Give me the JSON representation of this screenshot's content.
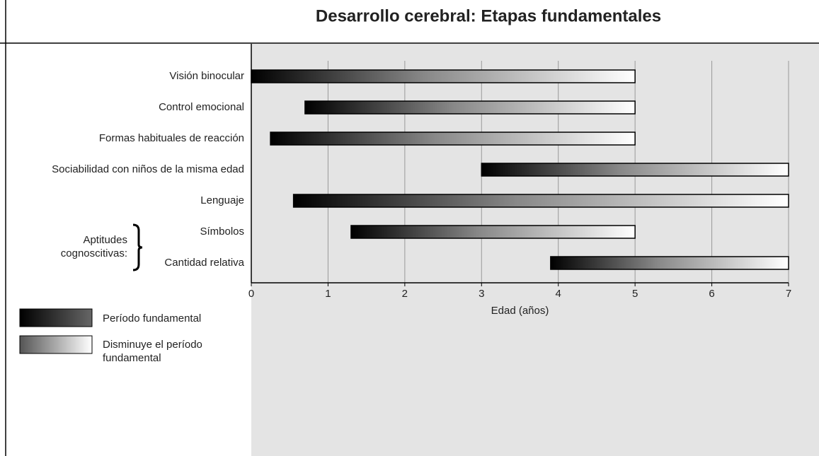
{
  "chart_data": {
    "type": "range-bar",
    "title": "Desarrollo cerebral: Etapas fundamentales",
    "categories": [
      "Visión binocular",
      "Control emocional",
      "Formas habituales de reacción",
      "Sociabilidad con niños de la misma edad",
      "Lenguaje",
      "Símbolos",
      "Cantidad relativa"
    ],
    "starts": [
      0,
      0.7,
      0.25,
      3,
      0.55,
      1.3,
      3.9
    ],
    "ends": [
      5,
      5,
      5,
      7,
      7,
      5,
      7
    ],
    "group_label": "Aptitudes cognoscitivas:",
    "xlabel": "Edad (años)",
    "xlim": [
      0,
      7
    ],
    "xticks": [
      0,
      1,
      2,
      3,
      4,
      5,
      6,
      7
    ],
    "grid": true,
    "legend": [
      "Período fundamental",
      "Disminuye el período fundamental"
    ]
  }
}
